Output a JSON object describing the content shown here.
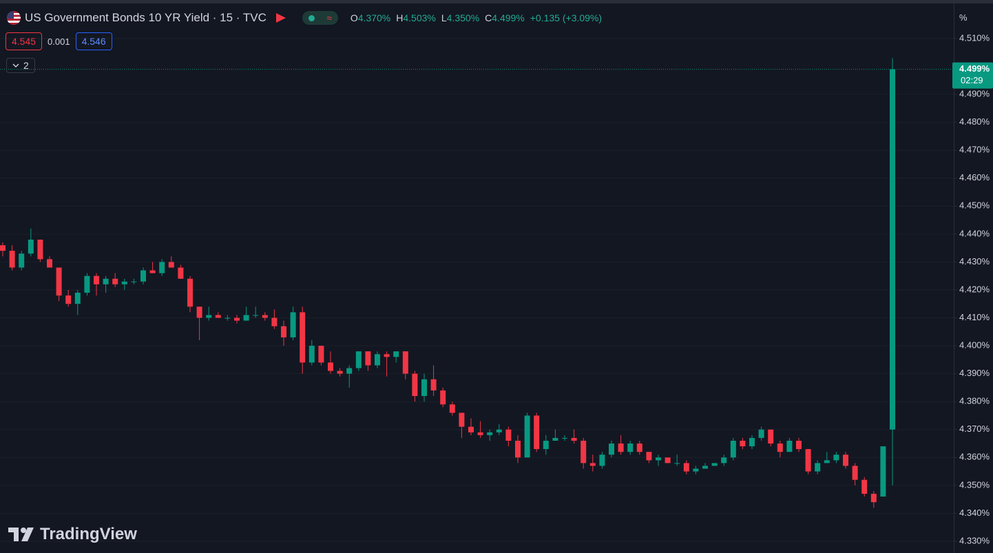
{
  "chart_data": {
    "type": "candlestick",
    "title": "US Government Bonds 10 YR Yield · 15 · TVC",
    "ohlc_legend": [
      {
        "key": "O",
        "value": "4.370%"
      },
      {
        "key": "H",
        "value": "4.503%"
      },
      {
        "key": "L",
        "value": "4.350%"
      },
      {
        "key": "C",
        "value": "4.499%"
      }
    ],
    "change": "+0.135 (+3.09%)",
    "bid": "4.545",
    "spread": "0.001",
    "ask": "4.546",
    "indicators": "2",
    "axis_unit": "%",
    "last_price_label": "4.499%",
    "countdown": "02:29",
    "brand": "TradingView",
    "up_color": "#089981",
    "down_color": "#f23645",
    "ylim": [
      4.3258,
      4.5238
    ],
    "yticks": [
      {
        "value": 4.33,
        "label": "4.330%"
      },
      {
        "value": 4.34,
        "label": "4.340%"
      },
      {
        "value": 4.35,
        "label": "4.350%"
      },
      {
        "value": 4.36,
        "label": "4.360%"
      },
      {
        "value": 4.37,
        "label": "4.370%"
      },
      {
        "value": 4.38,
        "label": "4.380%"
      },
      {
        "value": 4.39,
        "label": "4.390%"
      },
      {
        "value": 4.4,
        "label": "4.400%"
      },
      {
        "value": 4.41,
        "label": "4.410%"
      },
      {
        "value": 4.42,
        "label": "4.420%"
      },
      {
        "value": 4.43,
        "label": "4.430%"
      },
      {
        "value": 4.44,
        "label": "4.440%"
      },
      {
        "value": 4.45,
        "label": "4.450%"
      },
      {
        "value": 4.46,
        "label": "4.460%"
      },
      {
        "value": 4.47,
        "label": "4.470%"
      },
      {
        "value": 4.48,
        "label": "4.480%"
      },
      {
        "value": 4.49,
        "label": "4.490%"
      },
      {
        "value": 4.51,
        "label": "4.510%"
      }
    ],
    "grid": true,
    "open": [
      4.436,
      4.434,
      4.428,
      4.433,
      4.438,
      4.431,
      4.428,
      4.418,
      4.415,
      4.419,
      4.425,
      4.422,
      4.424,
      4.422,
      4.423,
      4.423,
      4.427,
      4.426,
      4.43,
      4.428,
      4.424,
      4.414,
      4.41,
      4.411,
      4.41,
      4.41,
      4.409,
      4.411,
      4.411,
      4.41,
      4.407,
      4.403,
      4.412,
      4.394,
      4.4,
      4.394,
      4.391,
      4.39,
      4.392,
      4.398,
      4.393,
      4.397,
      4.396,
      4.398,
      4.39,
      4.382,
      4.388,
      4.384,
      4.379,
      4.376,
      4.371,
      4.369,
      4.368,
      4.369,
      4.37,
      4.366,
      4.36,
      4.375,
      4.363,
      4.366,
      4.367,
      4.367,
      4.366,
      4.358,
      4.357,
      4.361,
      4.365,
      4.362,
      4.365,
      4.362,
      4.359,
      4.36,
      4.358,
      4.358,
      4.355,
      4.356,
      4.357,
      4.358,
      4.36,
      4.366,
      4.364,
      4.367,
      4.37,
      4.365,
      4.362,
      4.366,
      4.363,
      4.355,
      4.358,
      4.359,
      4.361,
      4.357,
      4.352,
      4.347,
      4.346,
      4.37
    ],
    "high": [
      4.437,
      4.436,
      4.434,
      4.442,
      4.438,
      4.432,
      4.428,
      4.42,
      4.42,
      4.426,
      4.426,
      4.425,
      4.426,
      4.424,
      4.424,
      4.428,
      4.43,
      4.431,
      4.432,
      4.429,
      4.425,
      4.414,
      4.414,
      4.412,
      4.411,
      4.411,
      4.414,
      4.414,
      4.412,
      4.413,
      4.409,
      4.414,
      4.414,
      4.402,
      4.4,
      4.398,
      4.392,
      4.393,
      4.398,
      4.398,
      4.398,
      4.398,
      4.398,
      4.398,
      4.391,
      4.39,
      4.393,
      4.385,
      4.38,
      4.376,
      4.374,
      4.373,
      4.37,
      4.372,
      4.371,
      4.368,
      4.376,
      4.376,
      4.368,
      4.37,
      4.368,
      4.37,
      4.367,
      4.361,
      4.362,
      4.366,
      4.368,
      4.366,
      4.366,
      4.362,
      4.361,
      4.36,
      4.361,
      4.359,
      4.357,
      4.358,
      4.358,
      4.361,
      4.367,
      4.367,
      4.368,
      4.371,
      4.37,
      4.366,
      4.367,
      4.367,
      4.363,
      4.359,
      4.362,
      4.362,
      4.362,
      4.358,
      4.353,
      4.348,
      4.364,
      4.503
    ],
    "low": [
      4.432,
      4.427,
      4.427,
      4.432,
      4.43,
      4.428,
      4.416,
      4.414,
      4.411,
      4.418,
      4.418,
      4.419,
      4.421,
      4.42,
      4.422,
      4.422,
      4.426,
      4.425,
      4.428,
      4.424,
      4.412,
      4.402,
      4.409,
      4.41,
      4.409,
      4.408,
      4.409,
      4.41,
      4.409,
      4.406,
      4.4,
      4.402,
      4.39,
      4.393,
      4.393,
      4.39,
      4.389,
      4.385,
      4.391,
      4.391,
      4.392,
      4.389,
      4.394,
      4.388,
      4.38,
      4.38,
      4.382,
      4.378,
      4.375,
      4.367,
      4.368,
      4.367,
      4.366,
      4.368,
      4.364,
      4.358,
      4.36,
      4.362,
      4.361,
      4.366,
      4.366,
      4.365,
      4.356,
      4.355,
      4.356,
      4.36,
      4.361,
      4.361,
      4.361,
      4.358,
      4.357,
      4.358,
      4.357,
      4.354,
      4.354,
      4.356,
      4.357,
      4.357,
      4.359,
      4.363,
      4.363,
      4.366,
      4.364,
      4.36,
      4.362,
      4.362,
      4.354,
      4.354,
      4.358,
      4.358,
      4.356,
      4.35,
      4.346,
      4.342,
      4.346,
      4.35
    ],
    "close": [
      4.434,
      4.428,
      4.433,
      4.438,
      4.431,
      4.428,
      4.418,
      4.415,
      4.419,
      4.425,
      4.422,
      4.424,
      4.422,
      4.423,
      4.423,
      4.427,
      4.426,
      4.43,
      4.428,
      4.424,
      4.414,
      4.41,
      4.411,
      4.41,
      4.41,
      4.409,
      4.411,
      4.411,
      4.41,
      4.407,
      4.403,
      4.412,
      4.394,
      4.4,
      4.394,
      4.391,
      4.39,
      4.392,
      4.398,
      4.393,
      4.397,
      4.396,
      4.398,
      4.39,
      4.382,
      4.388,
      4.384,
      4.379,
      4.376,
      4.371,
      4.369,
      4.368,
      4.369,
      4.37,
      4.366,
      4.36,
      4.375,
      4.363,
      4.366,
      4.367,
      4.367,
      4.366,
      4.358,
      4.357,
      4.361,
      4.365,
      4.362,
      4.365,
      4.362,
      4.359,
      4.36,
      4.358,
      4.358,
      4.355,
      4.356,
      4.357,
      4.358,
      4.36,
      4.366,
      4.364,
      4.367,
      4.37,
      4.365,
      4.362,
      4.366,
      4.363,
      4.355,
      4.358,
      4.359,
      4.361,
      4.357,
      4.352,
      4.347,
      4.344,
      4.364,
      4.499
    ]
  }
}
